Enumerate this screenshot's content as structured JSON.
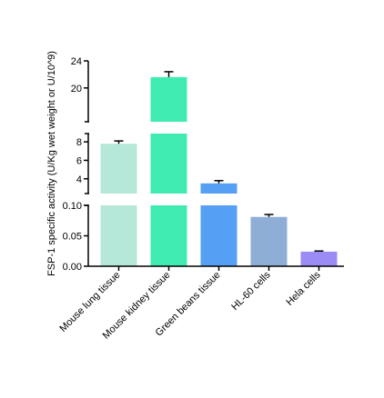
{
  "chart_data": {
    "type": "bar",
    "ylabel": "FSP-1 specific activity (U/Kg wet weight or U/10^9)",
    "categories": [
      "Mouse lung tissue",
      "Mouse kidney tissue",
      "Green beans tissue",
      "HL-60 cells",
      "Hela cells"
    ],
    "values": [
      7.8,
      21.6,
      3.5,
      0.081,
      0.024
    ],
    "errors": [
      0.3,
      0.8,
      0.3,
      0.004,
      0.001
    ],
    "colors": [
      "#b5e8d8",
      "#3febb0",
      "#55a0f5",
      "#8eaed6",
      "#9b8cf5"
    ],
    "y_segments": [
      {
        "range": [
          0,
          0.1
        ],
        "ticks": [
          "0.00",
          "0.05",
          "0.10"
        ]
      },
      {
        "range": [
          2.4,
          8.9
        ],
        "ticks": [
          "4",
          "6",
          "8"
        ]
      },
      {
        "range": [
          15,
          24
        ],
        "ticks": [
          "20",
          "24"
        ]
      }
    ],
    "axis_break": true,
    "grid": false,
    "legend": "none"
  }
}
